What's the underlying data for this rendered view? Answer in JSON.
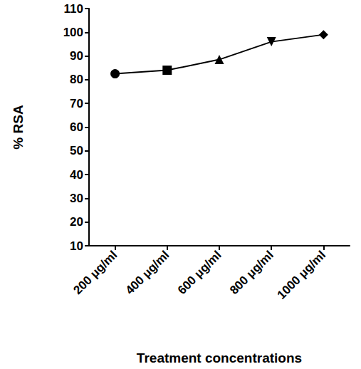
{
  "chart_data": {
    "type": "line",
    "categories": [
      "200 μg/ml",
      "400 μg/ml",
      "600 μg/ml",
      "800 μg/ml",
      "1000 μg/ml"
    ],
    "values": [
      82.5,
      84,
      88.5,
      96,
      99
    ],
    "color": "#000000",
    "xlabel": "Treatment concentrations",
    "ylabel": "% RSA",
    "ylim": [
      10,
      110
    ],
    "yticks": [
      10,
      20,
      30,
      40,
      50,
      60,
      70,
      80,
      90,
      100,
      110
    ],
    "grid": false
  }
}
